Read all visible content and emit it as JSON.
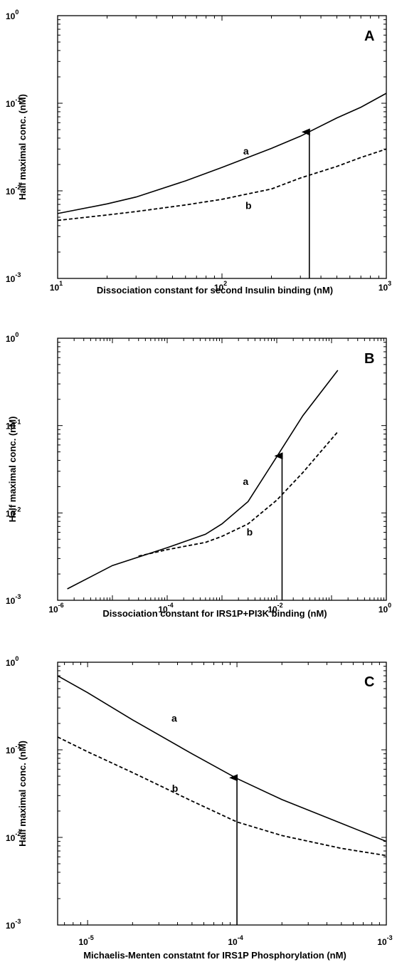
{
  "chart_data": [
    {
      "panel": "A",
      "type": "line",
      "xscale": "log",
      "yscale": "log",
      "xlim": [
        10,
        1000
      ],
      "ylim": [
        0.001,
        1
      ],
      "x_ticks": [
        {
          "base": "10",
          "exp": "1"
        },
        {
          "base": "10",
          "exp": "2"
        },
        {
          "base": "10",
          "exp": "3"
        }
      ],
      "y_ticks": [
        {
          "base": "10",
          "exp": "-3"
        },
        {
          "base": "10",
          "exp": "-2"
        },
        {
          "base": "10",
          "exp": "-1"
        },
        {
          "base": "10",
          "exp": "0"
        }
      ],
      "xlabel": "Dissociation constant for second Insulin binding (nM)",
      "ylabel": "Half maximal conc. (nM)",
      "series": [
        {
          "name": "a",
          "style": "solid",
          "x": [
            10,
            20,
            30,
            60,
            100,
            200,
            300,
            500,
            700,
            1000
          ],
          "y": [
            0.0055,
            0.0071,
            0.0085,
            0.013,
            0.0185,
            0.0305,
            0.042,
            0.068,
            0.09,
            0.13
          ]
        },
        {
          "name": "b",
          "style": "dashed",
          "x": [
            10,
            20,
            30,
            60,
            100,
            200,
            300,
            500,
            700,
            1000
          ],
          "y": [
            0.0046,
            0.0053,
            0.0058,
            0.0069,
            0.008,
            0.0105,
            0.014,
            0.019,
            0.024,
            0.03
          ]
        }
      ],
      "arrow": {
        "x": 340,
        "y_from": 0.001,
        "y_to": 0.047
      },
      "label_positions": [
        {
          "text": "a",
          "x": 140,
          "y": 0.026
        },
        {
          "text": "b",
          "x": 145,
          "y": 0.0062
        }
      ]
    },
    {
      "panel": "B",
      "type": "line",
      "xscale": "log",
      "yscale": "log",
      "xlim": [
        1e-06,
        1
      ],
      "ylim": [
        0.001,
        1
      ],
      "x_ticks": [
        {
          "base": "10",
          "exp": "-6"
        },
        {
          "base": "10",
          "exp": "-4"
        },
        {
          "base": "10",
          "exp": "-2"
        },
        {
          "base": "10",
          "exp": "0"
        }
      ],
      "y_ticks": [
        {
          "base": "10",
          "exp": "-3"
        },
        {
          "base": "10",
          "exp": "-2"
        },
        {
          "base": "10",
          "exp": "-1"
        },
        {
          "base": "10",
          "exp": "0"
        }
      ],
      "xlabel": "Dissociation constant for IRS1P+PI3K binding (nM)",
      "ylabel": "Half maximal conc. (nM)",
      "series": [
        {
          "name": "a",
          "style": "solid",
          "x": [
            1.5e-06,
            1e-05,
            0.0001,
            0.0005,
            0.001,
            0.003,
            0.01,
            0.03,
            0.13
          ],
          "y": [
            0.00135,
            0.0025,
            0.004,
            0.0057,
            0.0075,
            0.0135,
            0.044,
            0.13,
            0.43
          ]
        },
        {
          "name": "b",
          "style": "dashed",
          "x": [
            3e-05,
            0.0001,
            0.0005,
            0.001,
            0.003,
            0.01,
            0.03,
            0.13
          ],
          "y": [
            0.0032,
            0.0038,
            0.0046,
            0.0054,
            0.0075,
            0.014,
            0.029,
            0.085
          ]
        }
      ],
      "arrow": {
        "x": 0.0125,
        "y_from": 0.001,
        "y_to": 0.045
      },
      "label_positions": [
        {
          "text": "a",
          "x": 0.0027,
          "y": 0.021
        },
        {
          "text": "b",
          "x": 0.0032,
          "y": 0.0055
        }
      ]
    },
    {
      "panel": "C",
      "type": "line",
      "xscale": "log",
      "yscale": "log",
      "xlim": [
        6.3e-06,
        0.001
      ],
      "ylim": [
        0.001,
        1
      ],
      "x_ticks": [
        {
          "base": "10",
          "exp": "-5"
        },
        {
          "base": "10",
          "exp": "-4"
        },
        {
          "base": "10",
          "exp": "-3"
        }
      ],
      "y_ticks": [
        {
          "base": "10",
          "exp": "-3"
        },
        {
          "base": "10",
          "exp": "-2"
        },
        {
          "base": "10",
          "exp": "-1"
        },
        {
          "base": "10",
          "exp": "0"
        }
      ],
      "xlabel": "Michaelis-Menten constatnt for IRS1P Phosphorylation (nM)",
      "ylabel": "Half maximal conc. (nM)",
      "series": [
        {
          "name": "a",
          "style": "solid",
          "x": [
            6.3e-06,
            1e-05,
            2e-05,
            5e-05,
            0.0001,
            0.0002,
            0.0005,
            0.001
          ],
          "y": [
            0.7,
            0.45,
            0.22,
            0.09,
            0.047,
            0.027,
            0.0145,
            0.009
          ]
        },
        {
          "name": "b",
          "style": "dashed",
          "x": [
            6.3e-06,
            1e-05,
            2e-05,
            5e-05,
            0.0001,
            0.0002,
            0.0005,
            0.001
          ],
          "y": [
            0.14,
            0.095,
            0.055,
            0.026,
            0.015,
            0.0105,
            0.0075,
            0.0062
          ]
        }
      ],
      "arrow": {
        "x": 0.0001,
        "y_from": 0.001,
        "y_to": 0.048
      },
      "label_positions": [
        {
          "text": "a",
          "x": 3.8e-05,
          "y": 0.21
        },
        {
          "text": "b",
          "x": 3.85e-05,
          "y": 0.033
        }
      ]
    }
  ]
}
